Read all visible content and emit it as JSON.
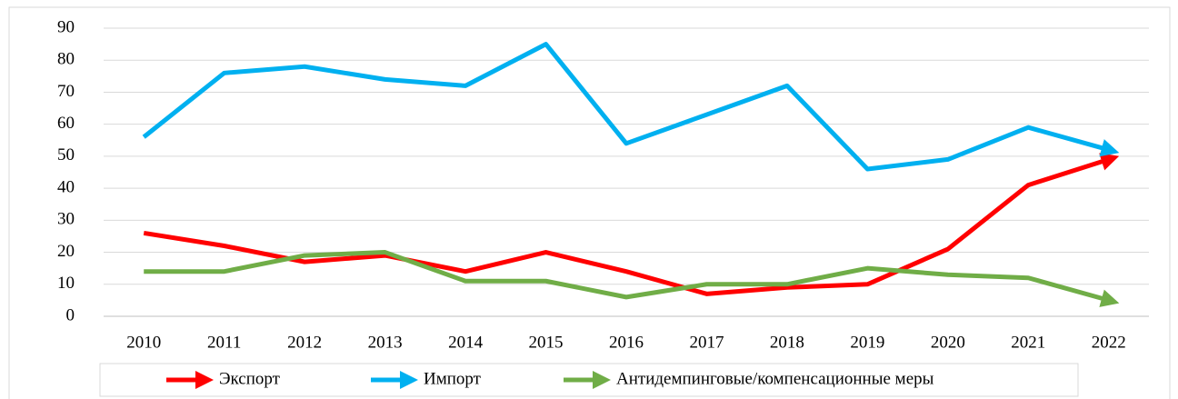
{
  "chart_data": {
    "type": "line",
    "categories": [
      "2010",
      "2011",
      "2012",
      "2013",
      "2014",
      "2015",
      "2016",
      "2017",
      "2018",
      "2019",
      "2020",
      "2021",
      "2022"
    ],
    "series": [
      {
        "name": "Экспорт",
        "color": "#ff0000",
        "values": [
          26,
          22,
          17,
          19,
          14,
          20,
          14,
          7,
          9,
          10,
          21,
          41,
          49
        ]
      },
      {
        "name": "Импорт",
        "color": "#00b0f0",
        "values": [
          56,
          76,
          78,
          74,
          72,
          85,
          54,
          63,
          72,
          46,
          49,
          59,
          52
        ]
      },
      {
        "name": "Антидемпинговые/компенсационные меры",
        "color": "#70ad47",
        "values": [
          14,
          14,
          19,
          20,
          11,
          11,
          6,
          10,
          10,
          15,
          13,
          12,
          5
        ]
      }
    ],
    "ylim": [
      0,
      90
    ],
    "yticks": [
      0,
      10,
      20,
      30,
      40,
      50,
      60,
      70,
      80,
      90
    ],
    "grid": true,
    "legend": "bottom"
  }
}
